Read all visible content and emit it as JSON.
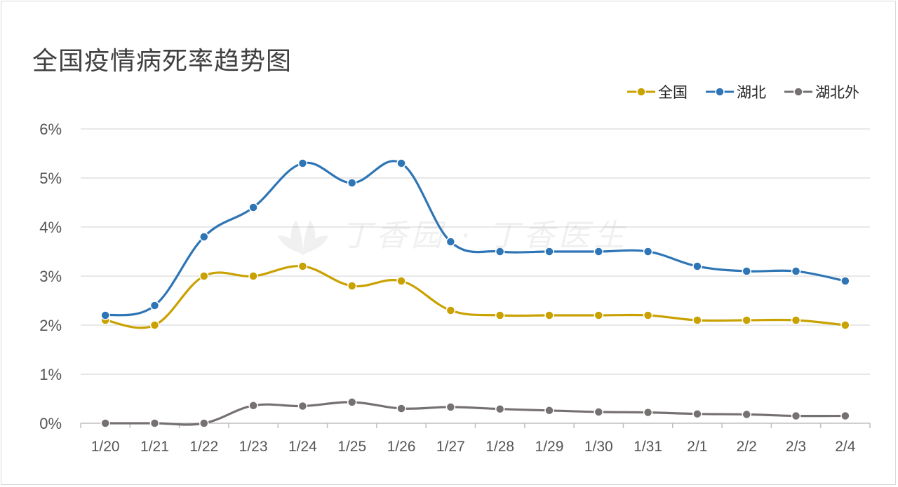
{
  "title": "全国疫情病死率趋势图",
  "watermark": "丁香园 · 丁香医生",
  "chart_data": {
    "type": "line",
    "title": "全国疫情病死率趋势图",
    "categories": [
      "1/20",
      "1/21",
      "1/22",
      "1/23",
      "1/24",
      "1/25",
      "1/26",
      "1/27",
      "1/28",
      "1/29",
      "1/30",
      "1/31",
      "2/1",
      "2/2",
      "2/3",
      "2/4"
    ],
    "y_ticks": [
      "0%",
      "1%",
      "2%",
      "3%",
      "4%",
      "5%",
      "6%"
    ],
    "ylim": [
      0,
      6
    ],
    "y_unit": "%",
    "grid": true,
    "legend_position": "top-right",
    "series": [
      {
        "name": "全国",
        "color": "#c9a100",
        "values": [
          2.1,
          2.0,
          3.0,
          3.0,
          3.2,
          2.8,
          2.9,
          2.3,
          2.2,
          2.2,
          2.2,
          2.2,
          2.1,
          2.1,
          2.1,
          2.0
        ]
      },
      {
        "name": "湖北",
        "color": "#2e75b6",
        "values": [
          2.2,
          2.4,
          3.8,
          4.4,
          5.3,
          4.9,
          5.3,
          3.7,
          3.5,
          3.5,
          3.5,
          3.5,
          3.2,
          3.1,
          3.1,
          2.9
        ]
      },
      {
        "name": "湖北外",
        "color": "#767171",
        "values": [
          0.0,
          0.0,
          0.0,
          0.36,
          0.35,
          0.43,
          0.3,
          0.33,
          0.29,
          0.26,
          0.23,
          0.22,
          0.19,
          0.18,
          0.15,
          0.15
        ]
      }
    ]
  }
}
